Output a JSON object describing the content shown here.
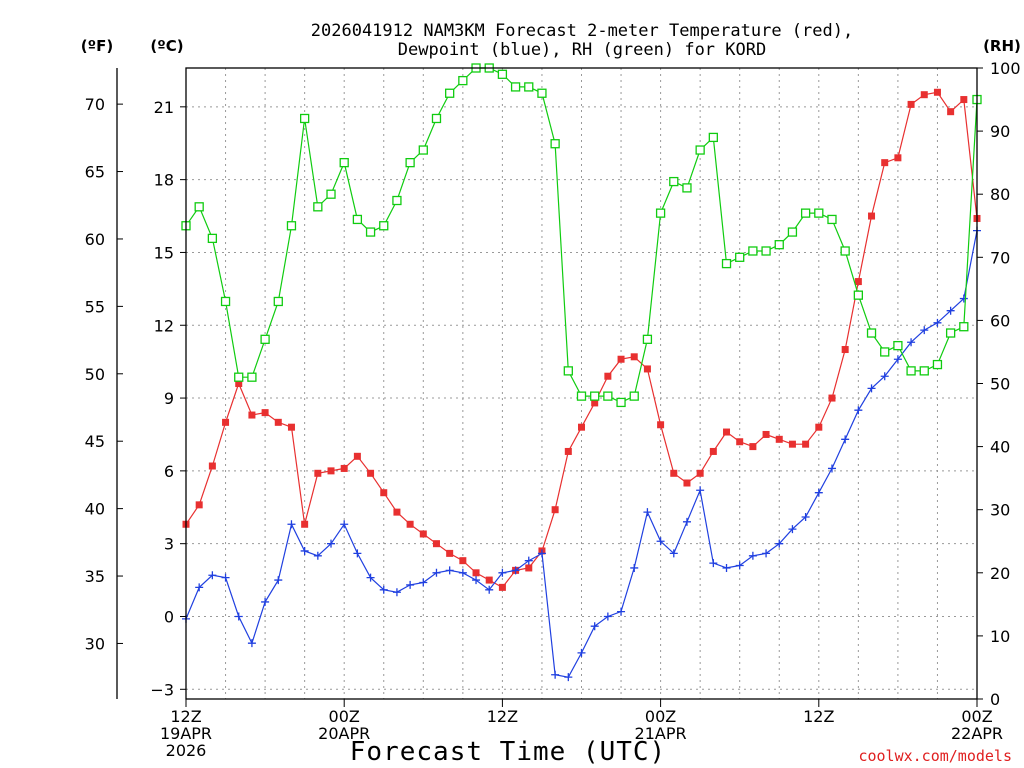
{
  "chart_data": {
    "type": "line",
    "title_line1": "2026041912 NAM3KM Forecast 2-meter Temperature (red),",
    "title_line2": "Dewpoint (blue), RH (green) for KORD",
    "xlabel": "Forecast Time (UTC)",
    "credit": "coolwx.com/models",
    "units": {
      "f": "(ºF)",
      "c": "(ºC)",
      "rh": "(RH)"
    },
    "colors": {
      "temp": "#e83030",
      "dew": "#2040e0",
      "rh": "#10cc10"
    },
    "ylim_c": [
      -3.4,
      22.6
    ],
    "ylim_rh": [
      0,
      100
    ],
    "xlim_hours": [
      0,
      60
    ],
    "c_ticks": [
      -3,
      0,
      3,
      6,
      9,
      12,
      15,
      18,
      21
    ],
    "c_tick_labels": [
      "−3",
      "0",
      "3",
      "6",
      "9",
      "12",
      "15",
      "18",
      "21"
    ],
    "f_ticks": [
      30,
      35,
      40,
      45,
      50,
      55,
      60,
      65,
      70
    ],
    "f_tick_labels": [
      "30",
      "35",
      "40",
      "45",
      "50",
      "55",
      "60",
      "65",
      "70"
    ],
    "rh_ticks": [
      0,
      10,
      20,
      30,
      40,
      50,
      60,
      70,
      80,
      90,
      100
    ],
    "rh_tick_labels": [
      "0",
      "10",
      "20",
      "30",
      "40",
      "50",
      "60",
      "70",
      "80",
      "90",
      "100"
    ],
    "x_ticks": [
      {
        "hour": 0,
        "lines": [
          "12Z",
          "19APR",
          "2026"
        ]
      },
      {
        "hour": 12,
        "lines": [
          "00Z",
          "20APR"
        ]
      },
      {
        "hour": 24,
        "lines": [
          "12Z"
        ]
      },
      {
        "hour": 36,
        "lines": [
          "00Z",
          "21APR"
        ]
      },
      {
        "hour": 48,
        "lines": [
          "12Z"
        ]
      },
      {
        "hour": 60,
        "lines": [
          "00Z",
          "22APR"
        ]
      }
    ],
    "hours": [
      0,
      1,
      2,
      3,
      4,
      5,
      6,
      7,
      8,
      9,
      10,
      11,
      12,
      13,
      14,
      15,
      16,
      17,
      18,
      19,
      20,
      21,
      22,
      23,
      24,
      25,
      26,
      27,
      28,
      29,
      30,
      31,
      32,
      33,
      34,
      35,
      36,
      37,
      38,
      39,
      40,
      41,
      42,
      43,
      44,
      45,
      46,
      47,
      48,
      49,
      50,
      51,
      52,
      53,
      54,
      55,
      56,
      57,
      58,
      59,
      60
    ],
    "series": [
      {
        "name": "Temperature (C)",
        "key": "temp",
        "marker": "filled-square",
        "values": [
          3.8,
          4.6,
          6.2,
          8.0,
          9.6,
          8.3,
          8.4,
          8.0,
          7.8,
          3.8,
          5.9,
          6.0,
          6.1,
          6.6,
          5.9,
          5.1,
          4.3,
          3.8,
          3.4,
          3.0,
          2.6,
          2.3,
          1.8,
          1.5,
          1.2,
          1.9,
          2.0,
          2.7,
          4.4,
          6.8,
          7.8,
          8.8,
          9.9,
          10.6,
          10.7,
          10.2,
          7.9,
          5.9,
          5.5,
          5.9,
          6.8,
          7.6,
          7.2,
          7.0,
          7.5,
          7.3,
          7.1,
          7.1,
          7.8,
          9.0,
          11.0,
          13.8,
          16.5,
          18.7,
          18.9,
          21.1,
          21.5,
          21.6,
          20.8,
          21.3,
          16.4
        ]
      },
      {
        "name": "Dewpoint (C)",
        "key": "dew",
        "marker": "plus",
        "values": [
          -0.1,
          1.2,
          1.7,
          1.6,
          0.0,
          -1.1,
          0.6,
          1.5,
          3.8,
          2.7,
          2.5,
          3.0,
          3.8,
          2.6,
          1.6,
          1.1,
          1.0,
          1.3,
          1.4,
          1.8,
          1.9,
          1.8,
          1.5,
          1.1,
          1.8,
          1.9,
          2.3,
          2.6,
          -2.4,
          -2.5,
          -1.5,
          -0.4,
          0.0,
          0.2,
          2.0,
          4.3,
          3.1,
          2.6,
          3.9,
          5.2,
          2.2,
          2.0,
          2.1,
          2.5,
          2.6,
          3.0,
          3.6,
          4.1,
          5.1,
          6.1,
          7.3,
          8.5,
          9.4,
          9.9,
          10.6,
          11.3,
          11.8,
          12.1,
          12.6,
          13.1,
          15.9
        ]
      },
      {
        "name": "RH (%)",
        "key": "rh",
        "marker": "open-square",
        "values": [
          75,
          78,
          73,
          63,
          51,
          51,
          57,
          63,
          75,
          92,
          78,
          80,
          85,
          76,
          74,
          75,
          79,
          85,
          87,
          92,
          96,
          98,
          100,
          100,
          99,
          97,
          97,
          96,
          88,
          52,
          48,
          48,
          48,
          47,
          48,
          57,
          77,
          82,
          81,
          87,
          89,
          69,
          70,
          71,
          71,
          72,
          74,
          77,
          77,
          76,
          71,
          64,
          58,
          55,
          56,
          52,
          52,
          53,
          58,
          59,
          95
        ]
      }
    ]
  }
}
